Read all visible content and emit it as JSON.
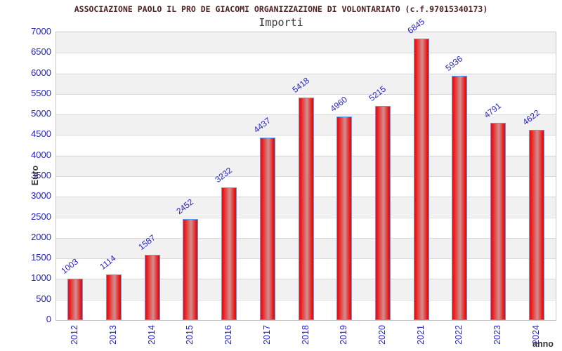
{
  "title": "ASSOCIAZIONE PAOLO IL PRO DE GIACOMI ORGANIZZAZIONE DI VOLONTARIATO (c.f.97015340173)",
  "subtitle": "Importi",
  "colors": {
    "title_text": "#4f2020",
    "subtitle_text": "#3a3a3a",
    "tick_label_blue": "#2222cc",
    "bar_red": "#ee0a0a",
    "bar_highlight": "#d29090",
    "bar_border_blue": "#5b9bf0",
    "band_gray": "#f1f1f1",
    "gridline_gray": "#d9d9d9",
    "plot_border_gray": "#c6c6c6",
    "axis_title_dark": "#333333"
  },
  "chart_data": {
    "type": "bar",
    "title": "ASSOCIAZIONE PAOLO IL PRO DE GIACOMI ORGANIZZAZIONE DI VOLONTARIATO (c.f.97015340173)",
    "subtitle": "Importi",
    "categories": [
      "2012",
      "2013",
      "2014",
      "2015",
      "2016",
      "2017",
      "2018",
      "2019",
      "2020",
      "2021",
      "2022",
      "2023",
      "2024"
    ],
    "values": [
      1003,
      1114,
      1587,
      2452,
      3232,
      4437,
      5418,
      4960,
      5215,
      6845,
      5936,
      4791,
      4622
    ],
    "xlabel": "anno",
    "ylabel": "Euro",
    "ylim": [
      0,
      7000
    ],
    "ytick_step": 500,
    "grid": true,
    "value_labels": true,
    "legend": "none"
  }
}
